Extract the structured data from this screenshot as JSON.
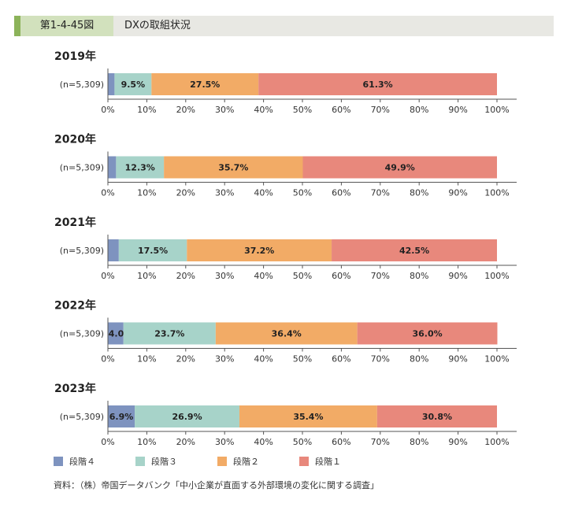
{
  "header": {
    "figure_number": "第1-4-45図",
    "title": "DXの取組状況"
  },
  "colors": {
    "stage4": "#7e93bf",
    "stage3": "#a7d3c9",
    "stage2": "#f2ab66",
    "stage1": "#e8887c",
    "axis": "#555555"
  },
  "legend": [
    {
      "label": "段階４",
      "color": "#7e93bf"
    },
    {
      "label": "段階３",
      "color": "#a7d3c9"
    },
    {
      "label": "段階２",
      "color": "#f2ab66"
    },
    {
      "label": "段階１",
      "color": "#e8887c"
    }
  ],
  "source": "資料：（株）帝国データバンク「中小企業が直面する外部環境の変化に関する調査」",
  "chart_data": {
    "type": "bar",
    "orientation": "horizontal-stacked-100",
    "xlim": [
      0,
      100
    ],
    "ticks": [
      "0%",
      "10%",
      "20%",
      "30%",
      "40%",
      "50%",
      "60%",
      "70%",
      "80%",
      "90%",
      "100%"
    ],
    "series_names": [
      "段階４",
      "段階３",
      "段階２",
      "段階１"
    ],
    "panels": [
      {
        "year": "2019年",
        "n_label": "(n=5,309)",
        "values": [
          1.7,
          9.5,
          27.5,
          61.3
        ],
        "labels": [
          "",
          "9.5%",
          "27.5%",
          "61.3%"
        ]
      },
      {
        "year": "2020年",
        "n_label": "(n=5,309)",
        "values": [
          2.1,
          12.3,
          35.7,
          49.9
        ],
        "labels": [
          "",
          "12.3%",
          "35.7%",
          "49.9%"
        ]
      },
      {
        "year": "2021年",
        "n_label": "(n=5,309)",
        "values": [
          2.8,
          17.5,
          37.2,
          42.5
        ],
        "labels": [
          "",
          "17.5%",
          "37.2%",
          "42.5%"
        ]
      },
      {
        "year": "2022年",
        "n_label": "(n=5,309)",
        "values": [
          4.0,
          23.7,
          36.4,
          36.0
        ],
        "labels": [
          "4.0%",
          "23.7%",
          "36.4%",
          "36.0%"
        ]
      },
      {
        "year": "2023年",
        "n_label": "(n=5,309)",
        "values": [
          6.9,
          26.9,
          35.4,
          30.8
        ],
        "labels": [
          "6.9%",
          "26.9%",
          "35.4%",
          "30.8%"
        ]
      }
    ]
  }
}
